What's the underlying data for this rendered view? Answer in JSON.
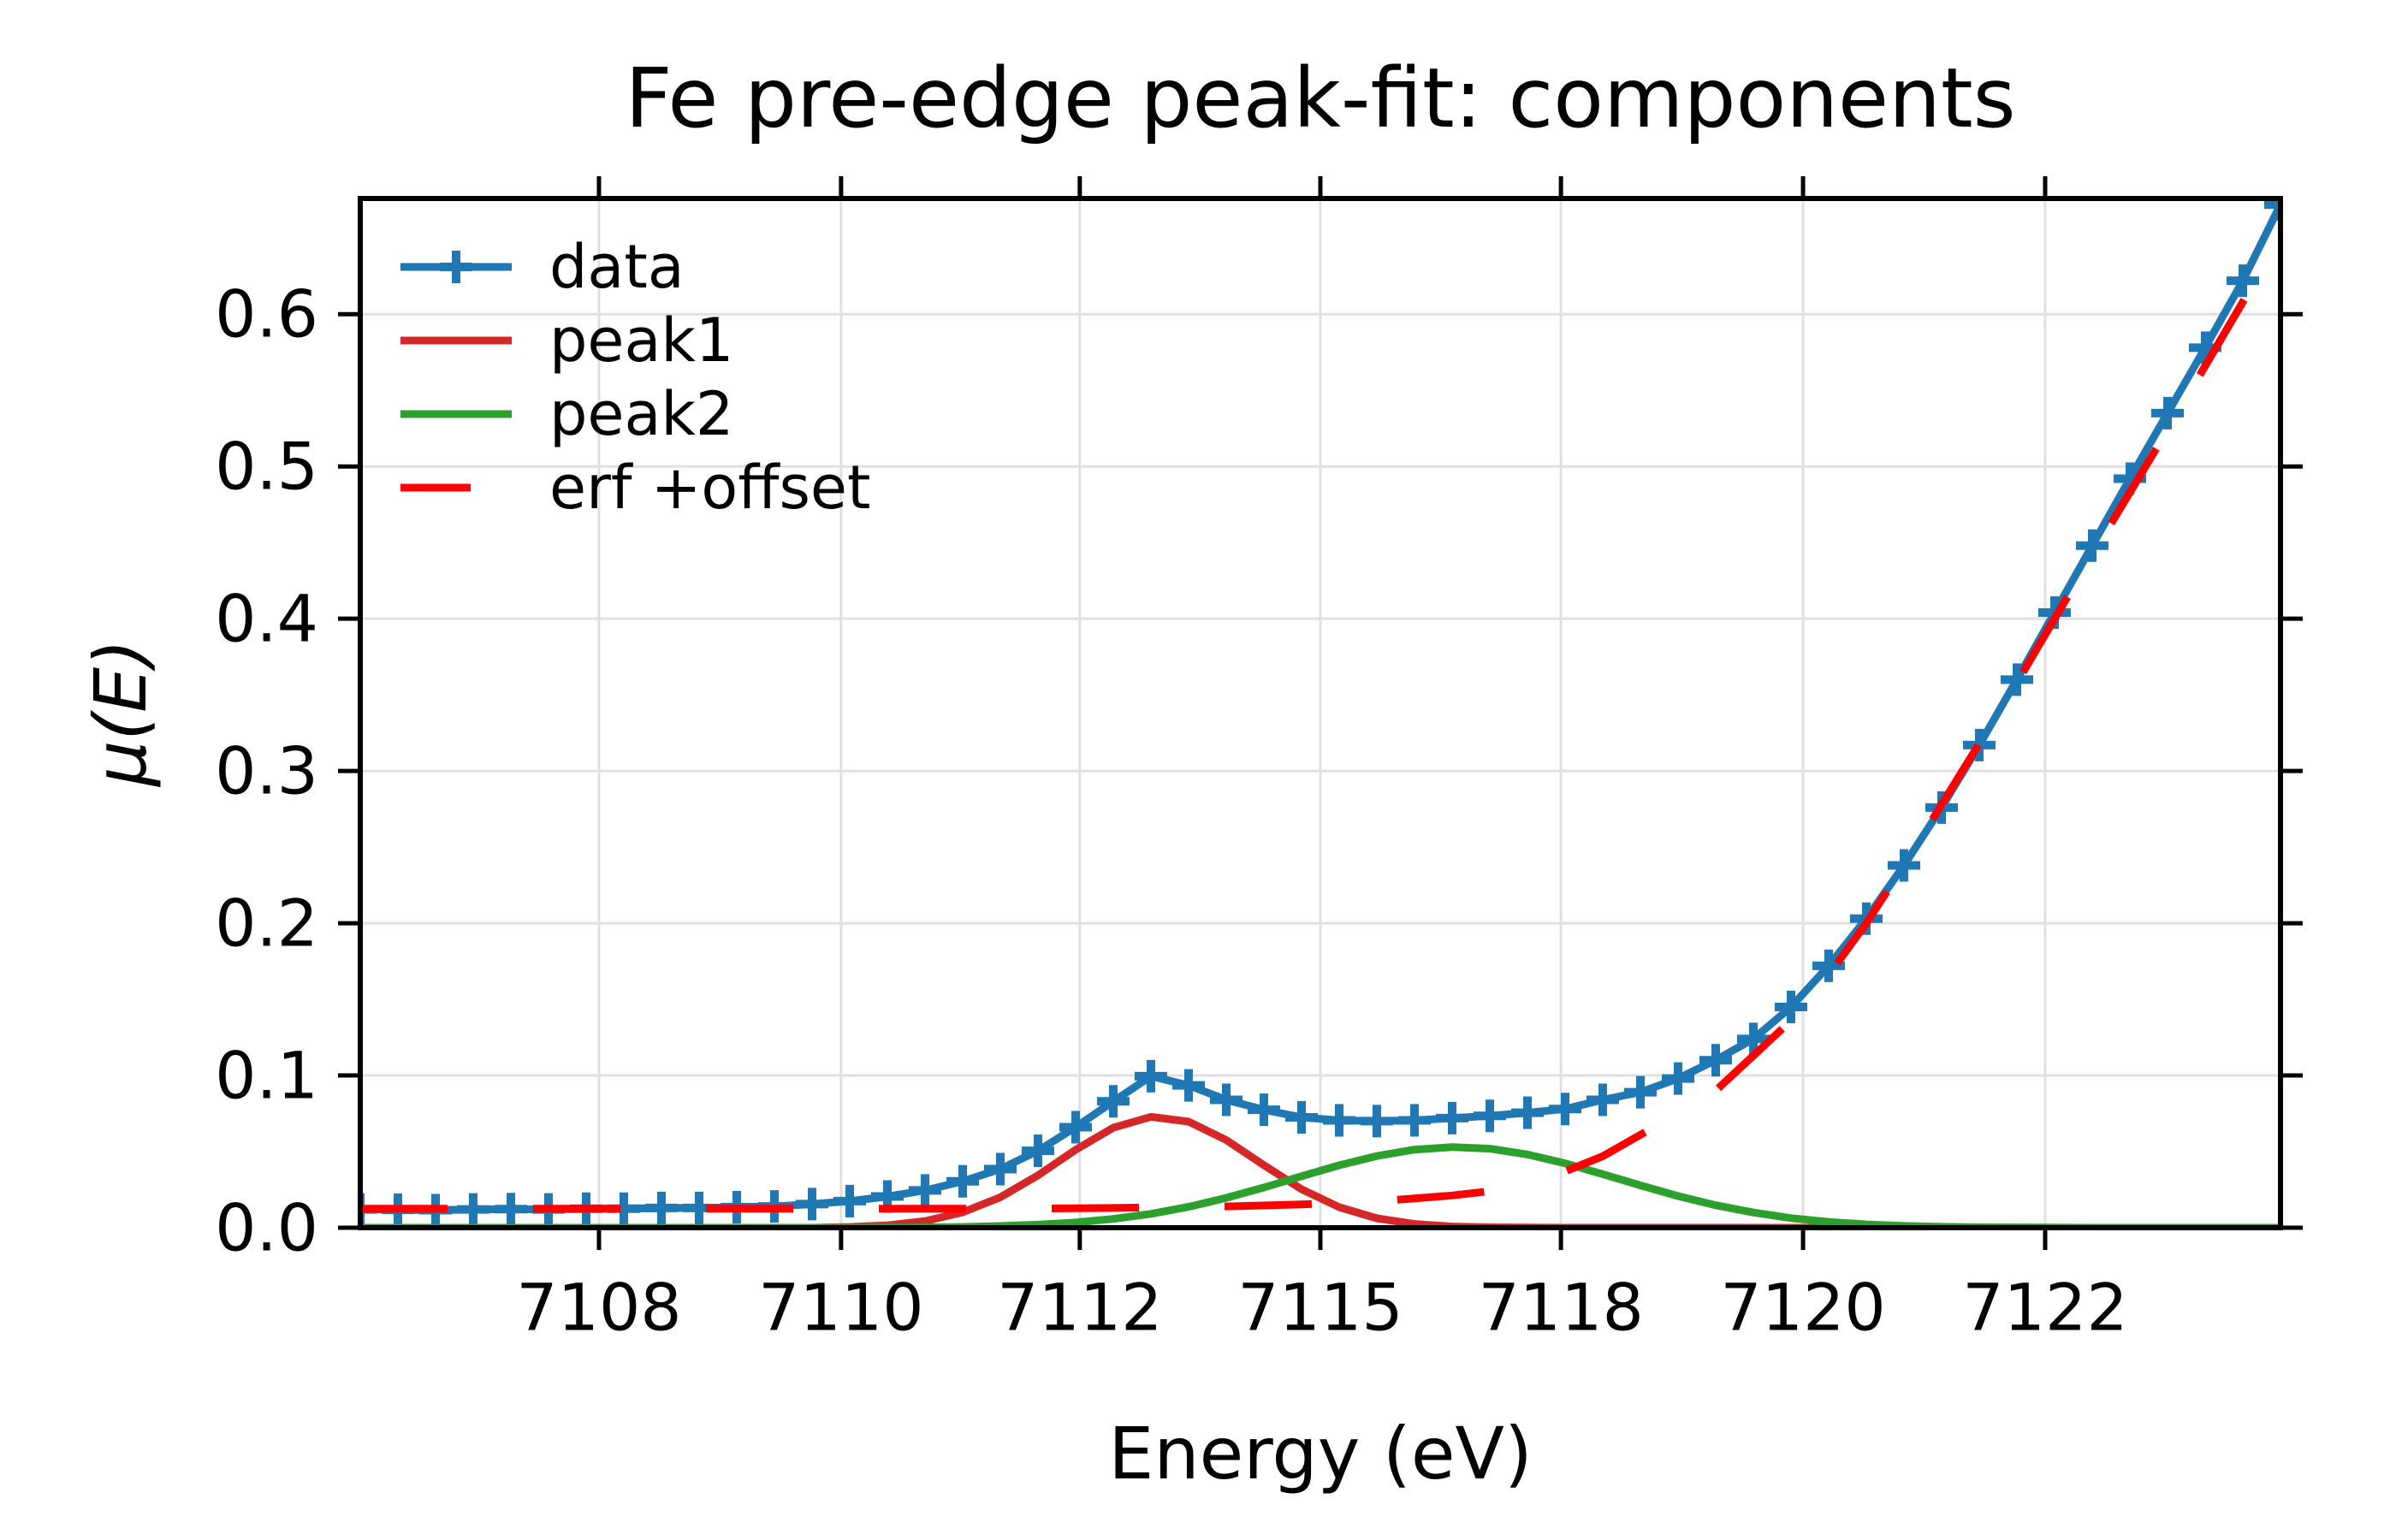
{
  "chart_data": {
    "type": "line",
    "title": "Fe pre-edge peak-fit: components",
    "xlabel": "Energy (eV)",
    "ylabel": "μ(E)",
    "grid": true,
    "legend_position": "upper left",
    "ylim": [
      0,
      0.676
    ],
    "y_ticks": {
      "values": [
        0,
        0.1,
        0.2,
        0.3,
        0.4,
        0.5,
        0.6
      ],
      "labels": [
        "0.0",
        "0.1",
        "0.2",
        "0.3",
        "0.4",
        "0.5",
        "0.6"
      ]
    },
    "x_ticks": {
      "labels": [
        "7108",
        "7110",
        "7112",
        "7115",
        "7118",
        "7120",
        "7122"
      ],
      "indices": [
        6.34,
        12.77,
        19.11,
        25.5,
        31.89,
        38.32,
        44.75
      ],
      "note": "x axis is plotted against sample index; energy grid is non-uniform"
    },
    "x_energies": [
      7106.1,
      7106.4,
      7106.7,
      7107.0,
      7107.3,
      7107.6,
      7107.9,
      7108.2,
      7108.5,
      7108.8,
      7109.1,
      7109.4,
      7109.7,
      7110.0,
      7110.33,
      7110.67,
      7111.0,
      7111.33,
      7111.67,
      7112.0,
      7112.47,
      7112.94,
      7113.41,
      7113.88,
      7114.34,
      7114.81,
      7115.28,
      7115.75,
      7116.22,
      7116.69,
      7117.16,
      7117.63,
      7118.09,
      7118.41,
      7118.72,
      7119.03,
      7119.34,
      7119.66,
      7119.97,
      7120.28,
      7120.59,
      7120.91,
      7121.22,
      7121.53,
      7121.84,
      7122.16,
      7122.47,
      7122.78,
      7123.09,
      7123.41,
      7123.72,
      7124.03
    ],
    "series": [
      {
        "name": "data",
        "color": "#1f77b4",
        "linestyle": "solid",
        "marker": "plus",
        "values": [
          0.012,
          0.0118,
          0.0115,
          0.012,
          0.0122,
          0.012,
          0.0125,
          0.0125,
          0.013,
          0.013,
          0.0135,
          0.014,
          0.0155,
          0.0175,
          0.0205,
          0.0245,
          0.0305,
          0.0385,
          0.0505,
          0.066,
          0.083,
          0.0995,
          0.0935,
          0.084,
          0.0775,
          0.0725,
          0.0705,
          0.07,
          0.0705,
          0.072,
          0.0735,
          0.0755,
          0.078,
          0.084,
          0.089,
          0.098,
          0.11,
          0.124,
          0.145,
          0.172,
          0.203,
          0.238,
          0.276,
          0.317,
          0.36,
          0.404,
          0.448,
          0.492,
          0.535,
          0.578,
          0.622,
          0.672
        ]
      },
      {
        "name": "peak1",
        "color": "#d62728",
        "linestyle": "solid",
        "marker": "none",
        "values": [
          0,
          0,
          0,
          0,
          0,
          0,
          0,
          0,
          0,
          0,
          0,
          0,
          0,
          0.0005,
          0.0016,
          0.0044,
          0.0101,
          0.02,
          0.0344,
          0.0512,
          0.0657,
          0.0728,
          0.0697,
          0.0576,
          0.0411,
          0.0253,
          0.0135,
          0.0062,
          0.0025,
          0.0008,
          0.0003,
          0.0001,
          0,
          0,
          0,
          0,
          0,
          0,
          0,
          0,
          0,
          0,
          0,
          0,
          0,
          0,
          0,
          0,
          0,
          0,
          0,
          0
        ]
      },
      {
        "name": "peak2",
        "color": "#2ca02c",
        "linestyle": "solid",
        "marker": "none",
        "values": [
          0,
          0,
          0,
          0,
          0,
          0,
          0,
          0,
          0,
          0,
          0,
          0,
          0,
          0,
          0.0001,
          0.0002,
          0.0005,
          0.0011,
          0.002,
          0.0034,
          0.0058,
          0.0091,
          0.0137,
          0.0196,
          0.0264,
          0.0338,
          0.041,
          0.0471,
          0.0513,
          0.053,
          0.0519,
          0.0481,
          0.0423,
          0.0352,
          0.0278,
          0.0208,
          0.0148,
          0.01,
          0.0063,
          0.0038,
          0.0022,
          0.0012,
          0.0006,
          0.0003,
          0.0002,
          0.0001,
          0,
          0,
          0,
          0,
          0,
          0
        ]
      },
      {
        "name": "erf +offset",
        "color": "#ff0000",
        "linestyle": "dashed",
        "marker": "none",
        "values": [
          0.0125,
          0.0125,
          0.0125,
          0.0125,
          0.0125,
          0.0125,
          0.0125,
          0.0125,
          0.0125,
          0.0125,
          0.0125,
          0.0125,
          0.0125,
          0.0125,
          0.0125,
          0.0125,
          0.0125,
          0.0125,
          0.0126,
          0.0128,
          0.013,
          0.0133,
          0.0136,
          0.014,
          0.0146,
          0.0153,
          0.0163,
          0.0175,
          0.0192,
          0.0212,
          0.024,
          0.0295,
          0.037,
          0.047,
          0.061,
          0.075,
          0.09,
          0.113,
          0.136,
          0.166,
          0.2,
          0.238,
          0.278,
          0.318,
          0.358,
          0.4,
          0.442,
          0.483,
          0.524,
          0.566,
          0.608,
          0.65
        ]
      }
    ]
  }
}
